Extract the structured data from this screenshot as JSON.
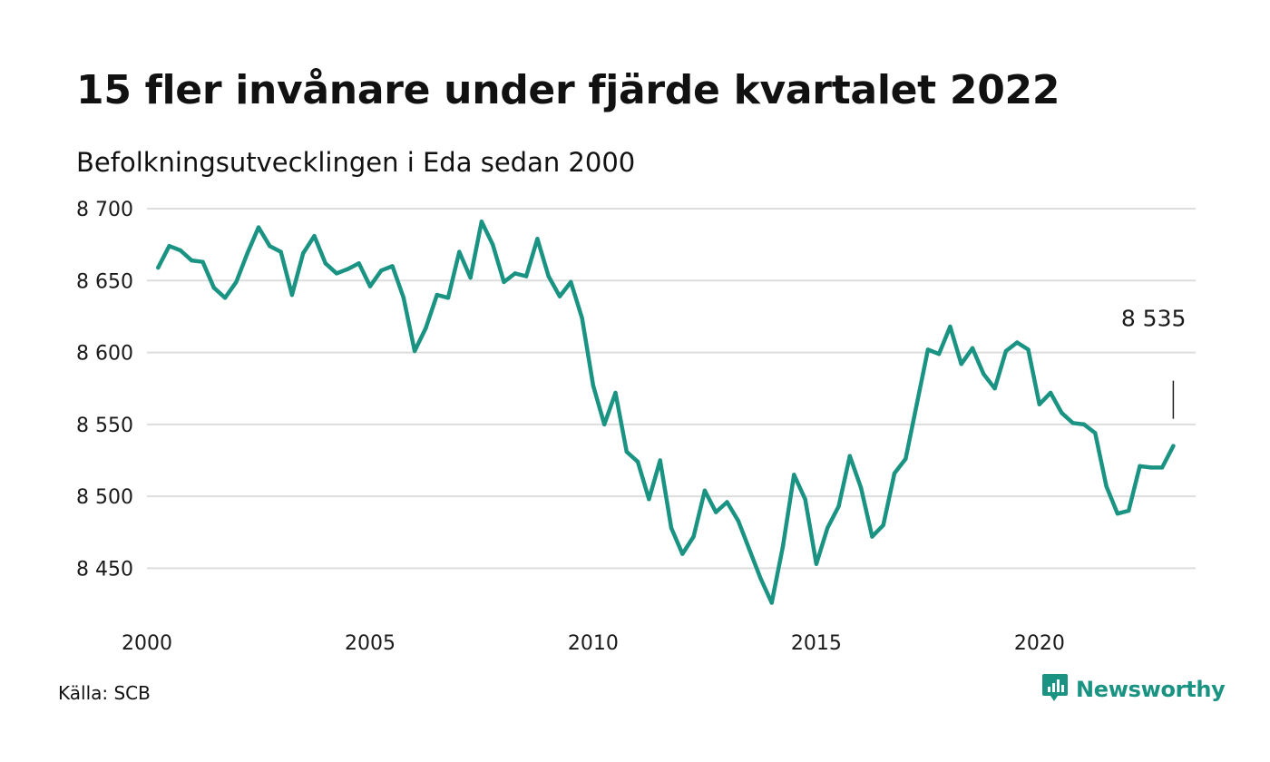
{
  "title": "15 fler invånare under fjärde kvartalet 2022",
  "subtitle": "Befolkningsutvecklingen i Eda sedan 2000",
  "source": "Källa: SCB",
  "brand": {
    "name": "Newsworthy",
    "icon": "newsworthy-logo-icon"
  },
  "colors": {
    "line": "#1a9383",
    "grid": "#dddddd",
    "annotation_tick": "#222222",
    "brand": "#1a9383"
  },
  "chart_data": {
    "type": "line",
    "title": "15 fler invånare under fjärde kvartalet 2022",
    "subtitle": "Befolkningsutvecklingen i Eda sedan 2000",
    "xlabel": "",
    "ylabel": "",
    "xlim": [
      2000,
      2023.5
    ],
    "ylim": [
      8420,
      8700
    ],
    "x_ticks": [
      2000,
      2005,
      2010,
      2015,
      2020
    ],
    "x_tick_labels": [
      "2000",
      "2005",
      "2010",
      "2015",
      "2020"
    ],
    "y_ticks": [
      8450,
      8500,
      8550,
      8600,
      8650,
      8700
    ],
    "y_tick_labels": [
      "8 450",
      "8 500",
      "8 550",
      "8 600",
      "8 650",
      "8 700"
    ],
    "grid": "horizontal",
    "series": [
      {
        "name": "",
        "x": [
          2000.25,
          2000.5,
          2000.75,
          2001,
          2001.25,
          2001.5,
          2001.75,
          2002,
          2002.25,
          2002.5,
          2002.75,
          2003,
          2003.25,
          2003.5,
          2003.75,
          2004,
          2004.25,
          2004.5,
          2004.75,
          2005,
          2005.25,
          2005.5,
          2005.75,
          2006,
          2006.25,
          2006.5,
          2006.75,
          2007,
          2007.25,
          2007.5,
          2007.75,
          2008,
          2008.25,
          2008.5,
          2008.75,
          2009,
          2009.25,
          2009.5,
          2009.75,
          2010,
          2010.25,
          2010.5,
          2010.75,
          2011,
          2011.25,
          2011.5,
          2011.75,
          2012,
          2012.25,
          2012.5,
          2012.75,
          2013,
          2013.25,
          2013.5,
          2013.75,
          2014,
          2014.25,
          2014.5,
          2014.75,
          2015,
          2015.25,
          2015.5,
          2015.75,
          2016,
          2016.25,
          2016.5,
          2016.75,
          2017,
          2017.25,
          2017.5,
          2017.75,
          2018,
          2018.25,
          2018.5,
          2018.75,
          2019,
          2019.25,
          2019.5,
          2019.75,
          2020,
          2020.25,
          2020.5,
          2020.75,
          2021,
          2021.25,
          2021.5,
          2021.75,
          2022,
          2022.25,
          2022.5,
          2022.75,
          2023
        ],
        "y": [
          8659,
          8674,
          8671,
          8664,
          8663,
          8645,
          8638,
          8649,
          8669,
          8687,
          8674,
          8670,
          8640,
          8669,
          8681,
          8662,
          8655,
          8658,
          8662,
          8646,
          8657,
          8660,
          8638,
          8601,
          8617,
          8640,
          8638,
          8670,
          8652,
          8691,
          8675,
          8649,
          8655,
          8653,
          8679,
          8653,
          8639,
          8649,
          8624,
          8577,
          8550,
          8572,
          8531,
          8524,
          8498,
          8525,
          8478,
          8460,
          8472,
          8504,
          8489,
          8496,
          8483,
          8463,
          8443,
          8426,
          8465,
          8515,
          8498,
          8453,
          8478,
          8493,
          8528,
          8506,
          8472,
          8480,
          8516,
          8526,
          8564,
          8602,
          8599,
          8618,
          8592,
          8603,
          8585,
          8575,
          8601,
          8607,
          8602,
          8564,
          8572,
          8558,
          8551,
          8550,
          8544,
          8507,
          8488,
          8490,
          8521,
          8520,
          8520,
          8535
        ]
      }
    ],
    "annotations": [
      {
        "label": "8 535",
        "x": 2023,
        "y": 8535
      }
    ]
  }
}
